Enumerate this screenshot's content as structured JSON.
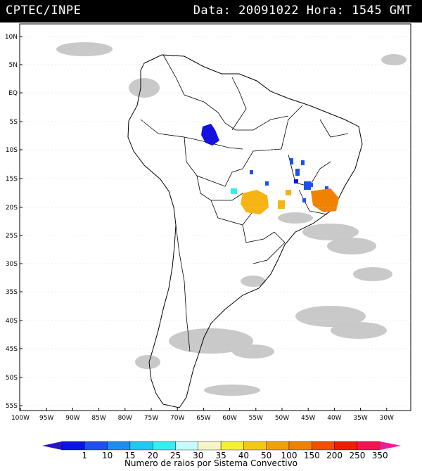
{
  "header": {
    "agency": "CPTEC/INPE",
    "datetime": "Data: 20091022 Hora: 1545 GMT"
  },
  "map": {
    "lat_labels": [
      "10N",
      "5N",
      "EQ",
      "5S",
      "10S",
      "15S",
      "20S",
      "25S",
      "30S",
      "35S",
      "40S",
      "45S",
      "50S",
      "55S"
    ],
    "lon_labels": [
      "100W",
      "95W",
      "90W",
      "85W",
      "80W",
      "75W",
      "70W",
      "65W",
      "60W",
      "55W",
      "50W",
      "45W",
      "40W",
      "35W",
      "30W"
    ]
  },
  "legend": {
    "labels": [
      "1",
      "10",
      "15",
      "20",
      "25",
      "30",
      "35",
      "40",
      "50",
      "100",
      "150",
      "200",
      "250",
      "350"
    ],
    "colors": [
      "#0a14e6",
      "#1e50f0",
      "#1e8cf0",
      "#1ec8f0",
      "#32f0f0",
      "#c8fafa",
      "#f5f5c8",
      "#f5f032",
      "#f5c814",
      "#f0a00a",
      "#f08200",
      "#f05000",
      "#f01e00",
      "#f51450"
    ],
    "arrow_left_color": "#2814c8",
    "arrow_right_color": "#f01e96",
    "caption": "Numero de raios por Sistema Convectivo"
  }
}
